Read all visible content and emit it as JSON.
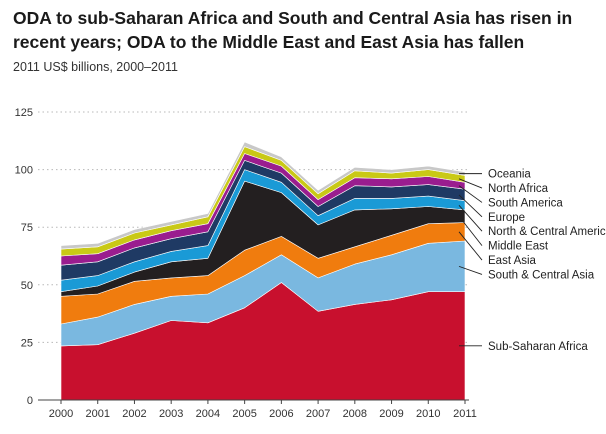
{
  "title": "ODA to sub-Saharan Africa and South and Central Asia has risen in recent years; ODA to the Middle East and East Asia has fallen",
  "subtitle": "2011 US$ billions, 2000–2011",
  "chart_data": {
    "type": "area",
    "stacked": true,
    "x": [
      "2000",
      "2001",
      "2002",
      "2003",
      "2004",
      "2005",
      "2006",
      "2007",
      "2008",
      "2009",
      "2010",
      "2011"
    ],
    "ylim": [
      0,
      125
    ],
    "yticks": [
      0,
      25,
      50,
      75,
      100,
      125
    ],
    "ytick_labels": [
      "0",
      "25",
      "50",
      "75",
      "100",
      "125"
    ],
    "grid": "dotted-horizontal",
    "legend": "right-inline-labels",
    "series": [
      {
        "name": "Sub-Saharan Africa",
        "color": "#c8102e",
        "values": [
          23.5,
          24,
          29,
          34.5,
          33.5,
          40,
          51,
          38.5,
          41.5,
          43.5,
          47,
          47
        ]
      },
      {
        "name": "South & Central Asia",
        "color": "#7ab8e0",
        "values": [
          9.5,
          12,
          12.5,
          10.5,
          12.5,
          14,
          12,
          14.5,
          17.5,
          19.5,
          21,
          22
        ]
      },
      {
        "name": "East Asia",
        "color": "#f07c0e",
        "values": [
          12,
          10,
          10,
          8,
          8,
          11,
          8,
          8.5,
          7.5,
          8.5,
          8.5,
          8
        ]
      },
      {
        "name": "Middle East",
        "color": "#231f20",
        "values": [
          2,
          3.5,
          4,
          7,
          7.5,
          30,
          19,
          14.5,
          16,
          11.5,
          7.5,
          5.5
        ]
      },
      {
        "name": "North & Central America",
        "color": "#1a9ad6",
        "values": [
          5,
          4.5,
          4.5,
          4.5,
          5.5,
          5,
          4.5,
          4,
          5,
          4.5,
          4.5,
          4
        ]
      },
      {
        "name": "Europe",
        "color": "#1f3a64",
        "values": [
          6.5,
          6,
          6,
          5.5,
          6,
          4,
          4,
          4,
          5.5,
          5,
          5,
          5
        ]
      },
      {
        "name": "South America",
        "color": "#9a1d8f",
        "values": [
          4,
          3.5,
          3.5,
          3.5,
          3.5,
          3,
          3,
          3,
          3.5,
          3.5,
          3.5,
          3
        ]
      },
      {
        "name": "North Africa",
        "color": "#c9c916",
        "values": [
          3,
          3,
          3,
          2.5,
          3,
          3,
          2.5,
          2.5,
          3,
          2.5,
          3,
          3
        ]
      },
      {
        "name": "Oceania",
        "color": "#c8c8c8",
        "values": [
          1.5,
          1.5,
          1.5,
          1.5,
          1.5,
          2,
          1.5,
          1.5,
          1.5,
          1.5,
          1.5,
          1.5
        ]
      }
    ]
  }
}
